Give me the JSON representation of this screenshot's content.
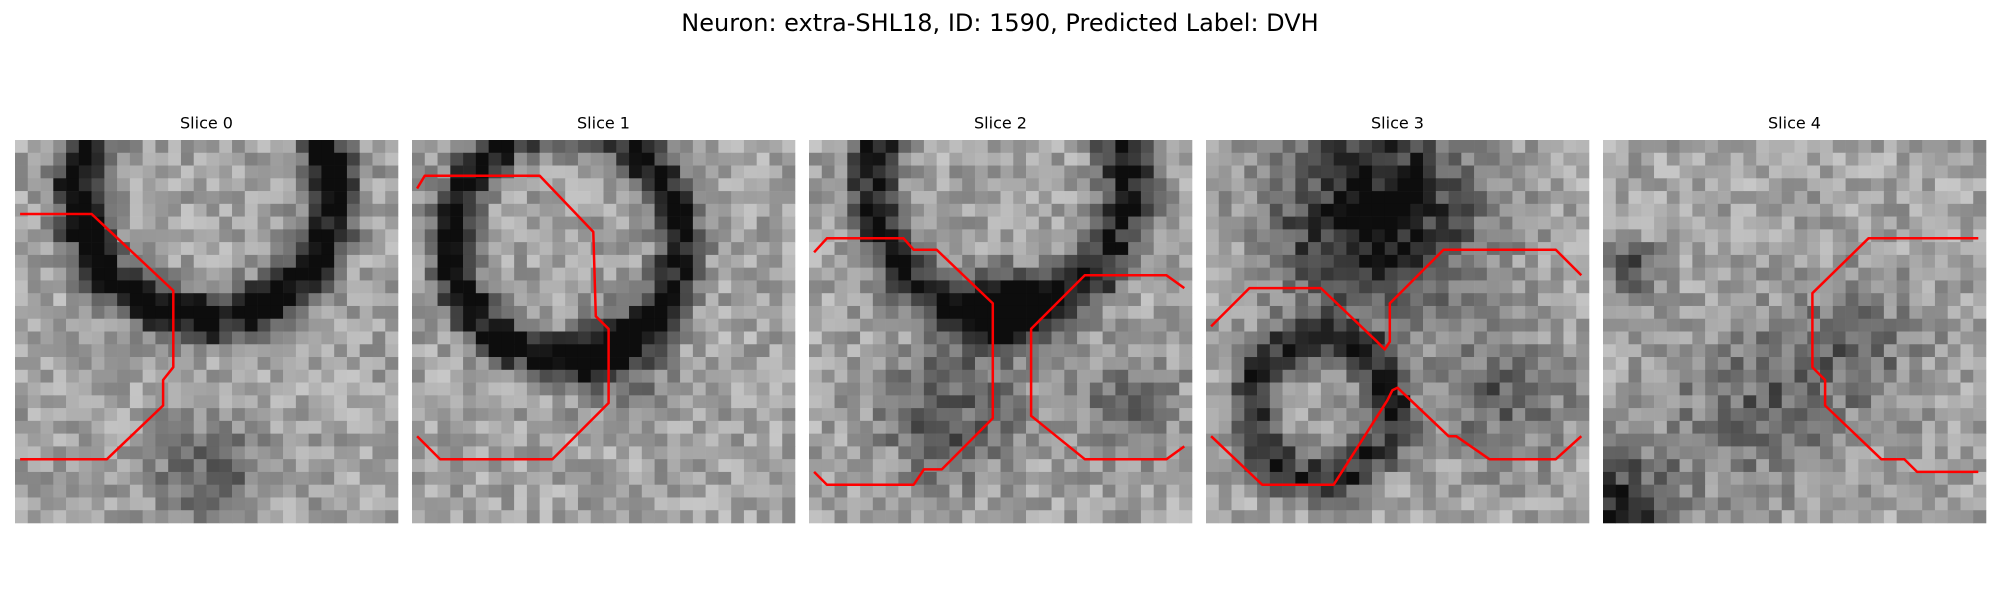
{
  "title": "Neuron: extra-SHL18, ID: 1590, Predicted Label: DVH",
  "panels": [
    {
      "title": "Slice 0"
    },
    {
      "title": "Slice 1"
    },
    {
      "title": "Slice 2"
    },
    {
      "title": "Slice 3"
    },
    {
      "title": "Slice 4"
    }
  ]
}
